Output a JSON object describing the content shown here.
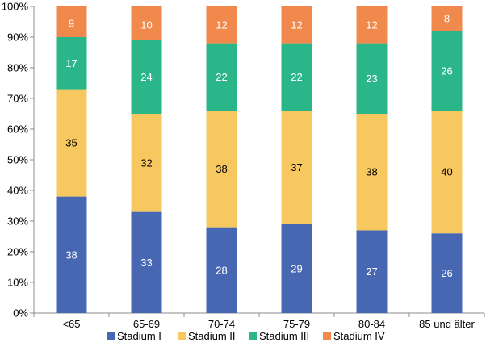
{
  "chart_data": {
    "type": "bar",
    "stacked": true,
    "title": "",
    "xlabel": "",
    "ylabel": "",
    "ylim": [
      0,
      100
    ],
    "y_ticks": [
      0,
      10,
      20,
      30,
      40,
      50,
      60,
      70,
      80,
      90,
      100
    ],
    "y_tick_suffix": "%",
    "categories": [
      "<65",
      "65-69",
      "70-74",
      "75-79",
      "80-84",
      "85 und älter"
    ],
    "series": [
      {
        "name": "Stadium I",
        "color": "#4767b3",
        "label_color": "#ffffff",
        "values": [
          38,
          33,
          28,
          29,
          27,
          26
        ]
      },
      {
        "name": "Stadium II",
        "color": "#f6c85f",
        "label_color": "#000000",
        "values": [
          35,
          32,
          38,
          37,
          38,
          40
        ]
      },
      {
        "name": "Stadium III",
        "color": "#2bb68a",
        "label_color": "#ffffff",
        "values": [
          17,
          24,
          22,
          22,
          23,
          26
        ]
      },
      {
        "name": "Stadium IV",
        "color": "#f0894b",
        "label_color": "#ffffff",
        "values": [
          9,
          10,
          12,
          12,
          12,
          8
        ]
      }
    ],
    "grid": false,
    "legend_position": "bottom"
  }
}
